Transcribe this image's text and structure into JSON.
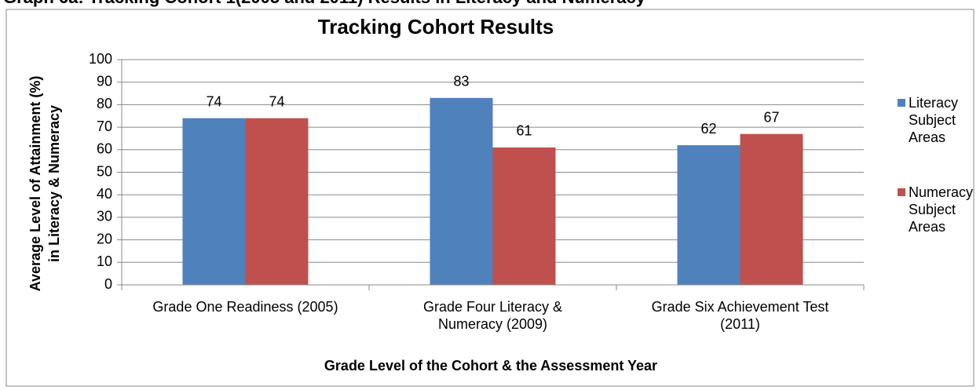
{
  "header": {
    "title": "Graph 6a: Tracking Cohort 1(2005 and 2011) Results in Literacy and Numeracy"
  },
  "chart_data": {
    "type": "bar",
    "title": "Tracking Cohort Results",
    "x_label": "Grade Level of the Cohort & the Assessment Year",
    "y_label": "Average Level of Attainment (%) in Literacy & Numeracy",
    "categories": [
      "Grade One Readiness (2005)",
      "Grade Four Literacy & Numeracy (2009)",
      "Grade Six Achievement Test (2011)"
    ],
    "series": [
      {
        "name": "Literacy Subject Areas",
        "color": "#4f81bd",
        "values": [
          74,
          83,
          62
        ]
      },
      {
        "name": "Numeracy Subject Areas",
        "color": "#c0504d",
        "values": [
          74,
          61,
          67
        ]
      }
    ],
    "ylim": [
      0,
      100
    ],
    "yticks": [
      0,
      10,
      20,
      30,
      40,
      50,
      60,
      70,
      80,
      90,
      100
    ],
    "grid": true,
    "legend": "right"
  }
}
